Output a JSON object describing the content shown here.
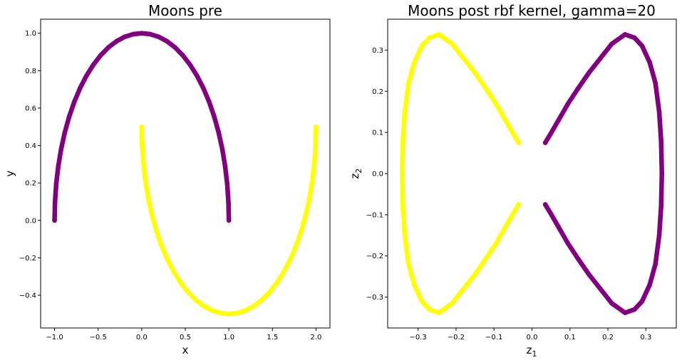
{
  "chart_data": [
    {
      "type": "scatter",
      "title": "Moons pre",
      "xlabel": "x",
      "ylabel": "y",
      "xlim": [
        -1.16,
        2.16
      ],
      "ylim": [
        -0.575,
        1.075
      ],
      "xticks": [
        -1.0,
        -0.5,
        0.0,
        0.5,
        1.0,
        1.5,
        2.0
      ],
      "xtick_labels": [
        "−1.0",
        "−0.5",
        "0.0",
        "0.5",
        "1.0",
        "1.5",
        "2.0"
      ],
      "yticks": [
        -0.4,
        -0.2,
        0.0,
        0.2,
        0.4,
        0.6,
        0.8,
        1.0
      ],
      "ytick_labels": [
        "−0.4",
        "−0.2",
        "0.0",
        "0.2",
        "0.4",
        "0.6",
        "0.8",
        "1.0"
      ],
      "grid": false,
      "series": [
        {
          "color": "#800080",
          "points": [
            [
              -1.0,
              0.0
            ],
            [
              -0.995,
              0.098
            ],
            [
              -0.981,
              0.195
            ],
            [
              -0.957,
              0.29
            ],
            [
              -0.924,
              0.383
            ],
            [
              -0.882,
              0.471
            ],
            [
              -0.831,
              0.556
            ],
            [
              -0.773,
              0.634
            ],
            [
              -0.707,
              0.707
            ],
            [
              -0.634,
              0.773
            ],
            [
              -0.556,
              0.831
            ],
            [
              -0.471,
              0.882
            ],
            [
              -0.383,
              0.924
            ],
            [
              -0.29,
              0.957
            ],
            [
              -0.195,
              0.981
            ],
            [
              -0.098,
              0.995
            ],
            [
              0.0,
              1.0
            ],
            [
              0.098,
              0.995
            ],
            [
              0.195,
              0.981
            ],
            [
              0.29,
              0.957
            ],
            [
              0.383,
              0.924
            ],
            [
              0.471,
              0.882
            ],
            [
              0.556,
              0.831
            ],
            [
              0.634,
              0.773
            ],
            [
              0.707,
              0.707
            ],
            [
              0.773,
              0.634
            ],
            [
              0.831,
              0.556
            ],
            [
              0.882,
              0.471
            ],
            [
              0.924,
              0.383
            ],
            [
              0.957,
              0.29
            ],
            [
              0.981,
              0.195
            ],
            [
              0.995,
              0.098
            ],
            [
              1.0,
              0.0
            ]
          ]
        },
        {
          "color": "#ffff00",
          "points": [
            [
              0.0,
              0.5
            ],
            [
              0.005,
              0.402
            ],
            [
              0.019,
              0.305
            ],
            [
              0.043,
              0.21
            ],
            [
              0.076,
              0.117
            ],
            [
              0.118,
              0.029
            ],
            [
              0.169,
              -0.056
            ],
            [
              0.227,
              -0.134
            ],
            [
              0.293,
              -0.207
            ],
            [
              0.366,
              -0.273
            ],
            [
              0.444,
              -0.331
            ],
            [
              0.529,
              -0.382
            ],
            [
              0.617,
              -0.424
            ],
            [
              0.71,
              -0.457
            ],
            [
              0.805,
              -0.481
            ],
            [
              0.902,
              -0.495
            ],
            [
              1.0,
              -0.5
            ],
            [
              1.098,
              -0.495
            ],
            [
              1.195,
              -0.481
            ],
            [
              1.29,
              -0.457
            ],
            [
              1.383,
              -0.424
            ],
            [
              1.471,
              -0.382
            ],
            [
              1.556,
              -0.331
            ],
            [
              1.634,
              -0.273
            ],
            [
              1.707,
              -0.207
            ],
            [
              1.773,
              -0.134
            ],
            [
              1.831,
              -0.056
            ],
            [
              1.882,
              0.029
            ],
            [
              1.924,
              0.117
            ],
            [
              1.957,
              0.21
            ],
            [
              1.981,
              0.305
            ],
            [
              1.995,
              0.402
            ],
            [
              2.0,
              0.5
            ]
          ]
        }
      ]
    },
    {
      "type": "scatter",
      "title": "Moons post rbf kernel, gamma=20",
      "xlabel_base": "z",
      "xlabel_sub": "1",
      "ylabel_base": "z",
      "ylabel_sub": "2",
      "xlim": [
        -0.38,
        0.38
      ],
      "ylim": [
        -0.375,
        0.375
      ],
      "xticks": [
        -0.3,
        -0.2,
        -0.1,
        0.0,
        0.1,
        0.2,
        0.3
      ],
      "xtick_labels": [
        "−0.3",
        "−0.2",
        "−0.1",
        "0.0",
        "0.1",
        "0.2",
        "0.3"
      ],
      "yticks": [
        -0.3,
        -0.2,
        -0.1,
        0.0,
        0.1,
        0.2,
        0.3
      ],
      "ytick_labels": [
        "−0.3",
        "−0.2",
        "−0.1",
        "0.0",
        "0.1",
        "0.2",
        "0.3"
      ],
      "grid": false,
      "series": [
        {
          "color": "#800080",
          "points": [
            [
              0.035,
              -0.075
            ],
            [
              0.05,
              -0.098
            ],
            [
              0.07,
              -0.13
            ],
            [
              0.095,
              -0.17
            ],
            [
              0.12,
              -0.205
            ],
            [
              0.15,
              -0.245
            ],
            [
              0.18,
              -0.28
            ],
            [
              0.21,
              -0.315
            ],
            [
              0.245,
              -0.338
            ],
            [
              0.27,
              -0.33
            ],
            [
              0.29,
              -0.31
            ],
            [
              0.31,
              -0.27
            ],
            [
              0.325,
              -0.22
            ],
            [
              0.335,
              -0.15
            ],
            [
              0.34,
              -0.08
            ],
            [
              0.342,
              0.0
            ],
            [
              0.34,
              0.08
            ],
            [
              0.335,
              0.15
            ],
            [
              0.325,
              0.22
            ],
            [
              0.31,
              0.27
            ],
            [
              0.29,
              0.31
            ],
            [
              0.27,
              0.33
            ],
            [
              0.245,
              0.338
            ],
            [
              0.21,
              0.315
            ],
            [
              0.18,
              0.28
            ],
            [
              0.15,
              0.245
            ],
            [
              0.12,
              0.205
            ],
            [
              0.095,
              0.17
            ],
            [
              0.07,
              0.13
            ],
            [
              0.05,
              0.098
            ],
            [
              0.035,
              0.075
            ]
          ]
        },
        {
          "color": "#ffff00",
          "points": [
            [
              -0.035,
              0.075
            ],
            [
              -0.05,
              0.098
            ],
            [
              -0.07,
              0.13
            ],
            [
              -0.095,
              0.17
            ],
            [
              -0.12,
              0.205
            ],
            [
              -0.15,
              0.245
            ],
            [
              -0.18,
              0.28
            ],
            [
              -0.21,
              0.315
            ],
            [
              -0.245,
              0.338
            ],
            [
              -0.27,
              0.33
            ],
            [
              -0.29,
              0.31
            ],
            [
              -0.31,
              0.27
            ],
            [
              -0.325,
              0.22
            ],
            [
              -0.335,
              0.15
            ],
            [
              -0.34,
              0.08
            ],
            [
              -0.342,
              0.0
            ],
            [
              -0.34,
              -0.08
            ],
            [
              -0.335,
              -0.15
            ],
            [
              -0.325,
              -0.22
            ],
            [
              -0.31,
              -0.27
            ],
            [
              -0.29,
              -0.31
            ],
            [
              -0.27,
              -0.33
            ],
            [
              -0.245,
              -0.338
            ],
            [
              -0.21,
              -0.315
            ],
            [
              -0.18,
              -0.28
            ],
            [
              -0.15,
              -0.245
            ],
            [
              -0.12,
              -0.205
            ],
            [
              -0.095,
              -0.17
            ],
            [
              -0.07,
              -0.13
            ],
            [
              -0.05,
              -0.098
            ],
            [
              -0.035,
              -0.075
            ]
          ]
        }
      ]
    }
  ]
}
